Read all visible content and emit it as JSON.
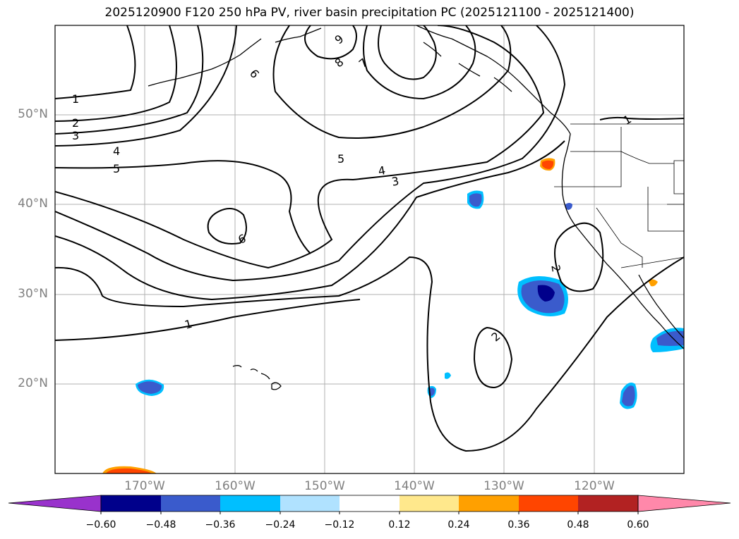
{
  "title": "2025120900 F120 250 hPa PV, river basin precipitation PC (2025121100 - 2025121400)",
  "map": {
    "projection": "PlateCarree",
    "lon_range": [
      -180,
      -110
    ],
    "lat_range": [
      10,
      60
    ],
    "gridlines": true,
    "lat_labels": [
      "50°N",
      "40°N",
      "30°N",
      "20°N"
    ],
    "lon_labels": [
      "170°W",
      "160°W",
      "150°W",
      "140°W",
      "130°W",
      "120°W"
    ],
    "contour_labels": [
      "1",
      "2",
      "3",
      "4",
      "5",
      "6",
      "7",
      "8",
      "9",
      "6",
      "5",
      "4",
      "3",
      "1",
      "2",
      "2",
      "1"
    ]
  },
  "colorbar": {
    "extend": "both",
    "ticks": [
      "−0.60",
      "−0.48",
      "−0.36",
      "−0.24",
      "−0.12",
      "0.12",
      "0.24",
      "0.36",
      "0.48",
      "0.60"
    ],
    "colors": [
      "#9932cc",
      "#00008b",
      "#3a5bcc",
      "#00bfff",
      "#b0e2ff",
      "#ffffff",
      "#ffe88c",
      "#ffa000",
      "#ff4500",
      "#b22222",
      "#ff88aa"
    ]
  }
}
